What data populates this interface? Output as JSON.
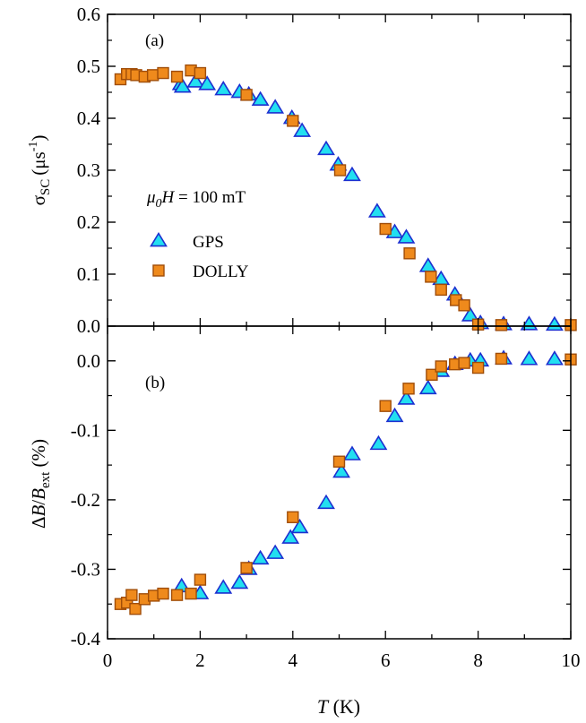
{
  "chart_data": [
    {
      "type": "scatter",
      "panel_label": "(a)",
      "annotation": {
        "prefix": "μ",
        "sub": "0",
        "var": "H",
        "rest": " = 100 mT"
      },
      "ylabel": {
        "base": "σ",
        "sub": "SC",
        "unit_pre": "(μs",
        "sup": "-1",
        "unit_post": ")"
      },
      "xlim": [
        0,
        10
      ],
      "ylim": [
        0,
        0.6
      ],
      "yticks": [
        "0.0",
        "0.1",
        "0.2",
        "0.3",
        "0.4",
        "0.5",
        "0.6"
      ],
      "legend": {
        "placement": "center-left",
        "entries": [
          "GPS",
          "DOLLY"
        ]
      },
      "series": [
        {
          "name": "GPS",
          "marker": "triangle",
          "x": [
            1.58,
            1.62,
            1.9,
            2.15,
            2.5,
            2.85,
            3.05,
            3.3,
            3.62,
            3.98,
            4.2,
            4.72,
            4.98,
            5.28,
            5.82,
            6.2,
            6.45,
            6.92,
            7.2,
            7.5,
            7.83,
            8.05,
            8.55,
            9.1,
            9.65
          ],
          "y": [
            0.465,
            0.46,
            0.47,
            0.465,
            0.455,
            0.45,
            0.445,
            0.435,
            0.42,
            0.4,
            0.375,
            0.34,
            0.31,
            0.29,
            0.22,
            0.18,
            0.17,
            0.115,
            0.09,
            0.06,
            0.02,
            0.005,
            0.003,
            0.003,
            0.002
          ]
        },
        {
          "name": "DOLLY",
          "marker": "square",
          "x": [
            0.28,
            0.42,
            0.52,
            0.62,
            0.8,
            0.98,
            1.2,
            1.5,
            1.8,
            2.0,
            3.0,
            4.0,
            5.02,
            6.0,
            6.52,
            6.98,
            7.2,
            7.52,
            7.7,
            8.0,
            8.5,
            10.0
          ],
          "y": [
            0.475,
            0.485,
            0.485,
            0.483,
            0.48,
            0.483,
            0.487,
            0.48,
            0.492,
            0.487,
            0.445,
            0.395,
            0.3,
            0.187,
            0.14,
            0.095,
            0.07,
            0.05,
            0.04,
            0.003,
            0.002,
            0.002
          ]
        }
      ]
    },
    {
      "type": "scatter",
      "panel_label": "(b)",
      "ylabel": {
        "pre": "Δ",
        "var1": "B",
        "slash": "/",
        "var2": "B",
        "sub": "ext",
        "unit": " (%)"
      },
      "xlabel": {
        "var": "T",
        "unit": " (K)"
      },
      "xlim": [
        0,
        10
      ],
      "ylim": [
        -0.4,
        0.05
      ],
      "xticks": [
        "0",
        "2",
        "4",
        "6",
        "8",
        "10"
      ],
      "yticks": [
        "-0.4",
        "-0.3",
        "-0.2",
        "-0.1",
        "0.0"
      ],
      "series": [
        {
          "name": "GPS",
          "marker": "triangle",
          "x": [
            1.6,
            2.0,
            2.5,
            2.85,
            3.05,
            3.3,
            3.62,
            3.95,
            4.15,
            4.72,
            5.05,
            5.28,
            5.85,
            6.2,
            6.45,
            6.92,
            7.2,
            7.5,
            7.83,
            8.05,
            8.55,
            9.1,
            9.65
          ],
          "y": [
            -0.325,
            -0.335,
            -0.327,
            -0.32,
            -0.3,
            -0.285,
            -0.277,
            -0.255,
            -0.24,
            -0.205,
            -0.16,
            -0.135,
            -0.12,
            -0.08,
            -0.055,
            -0.04,
            -0.015,
            -0.005,
            0.0,
            0.0,
            0.003,
            0.002,
            0.002
          ]
        },
        {
          "name": "DOLLY",
          "marker": "square",
          "x": [
            0.28,
            0.42,
            0.52,
            0.6,
            0.8,
            1.0,
            1.2,
            1.5,
            1.8,
            2.0,
            3.0,
            4.0,
            5.0,
            6.0,
            6.5,
            7.0,
            7.2,
            7.5,
            7.7,
            8.0,
            8.5,
            10.0
          ],
          "y": [
            -0.35,
            -0.348,
            -0.337,
            -0.357,
            -0.343,
            -0.338,
            -0.335,
            -0.337,
            -0.335,
            -0.315,
            -0.298,
            -0.225,
            -0.145,
            -0.065,
            -0.04,
            -0.02,
            -0.008,
            -0.005,
            -0.003,
            -0.01,
            0.003,
            0.002
          ]
        }
      ]
    }
  ]
}
